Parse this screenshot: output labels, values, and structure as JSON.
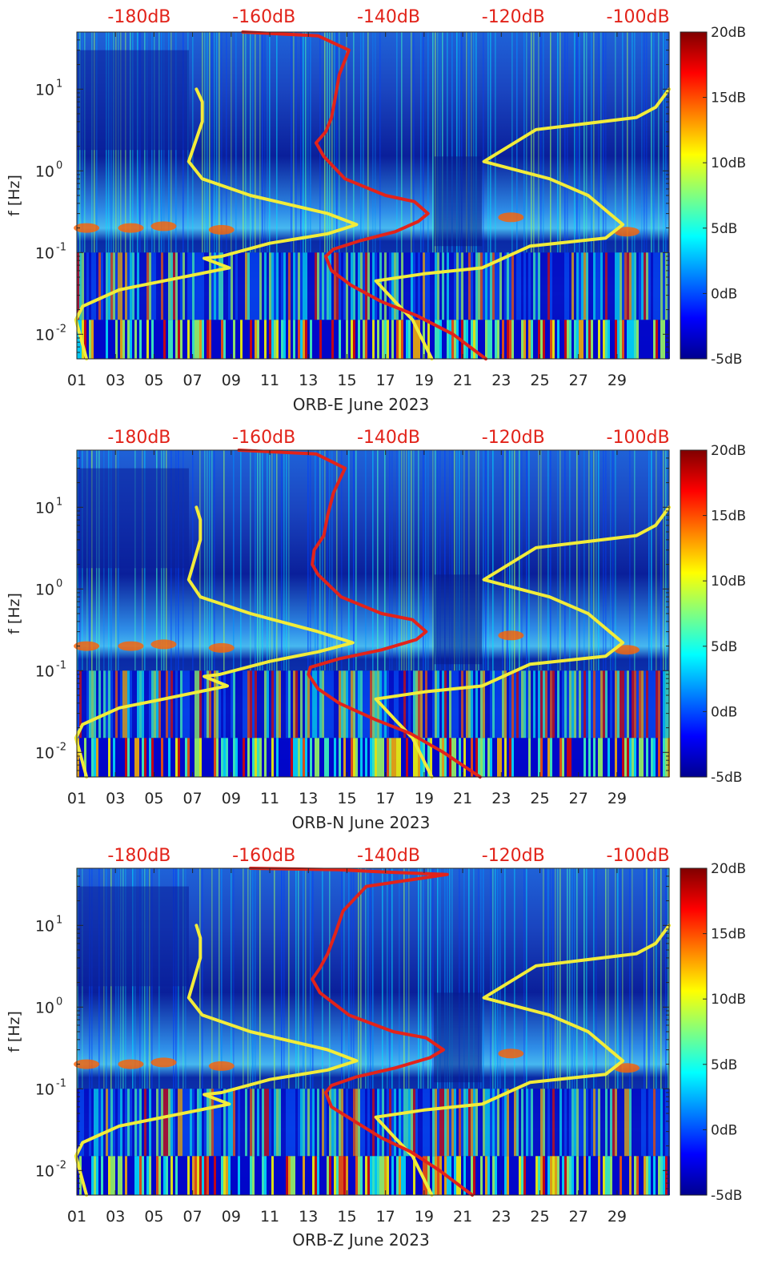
{
  "chart_data": [
    {
      "type": "heatmap",
      "station": "ORB-E",
      "xlabel": "ORB-E June 2023",
      "ylabel": "f [Hz]",
      "x_ticks": [
        "01",
        "03",
        "05",
        "07",
        "09",
        "11",
        "13",
        "15",
        "17",
        "19",
        "21",
        "23",
        "25",
        "27",
        "29"
      ],
      "xlim_days": [
        1,
        31.7
      ],
      "y_ticks": [
        {
          "label": "10",
          "exp": "-2",
          "value": 0.01
        },
        {
          "label": "10",
          "exp": "-1",
          "value": 0.1
        },
        {
          "label": "10",
          "exp": "0",
          "value": 1
        },
        {
          "label": "10",
          "exp": "1",
          "value": 10
        }
      ],
      "ylim_hz": [
        0.005,
        50
      ],
      "top_axis_ticks": [
        "-180dB",
        "-160dB",
        "-140dB",
        "-120dB",
        "-100dB"
      ],
      "top_axis_range_db": [
        -190,
        -95
      ],
      "colorbar": {
        "labels": [
          "20dB",
          "15dB",
          "10dB",
          "5dB",
          "0dB",
          "-5dB"
        ],
        "range": [
          -5,
          20
        ],
        "colormap": "jet"
      },
      "overlay_red_day": [
        [
          9.6,
          50
        ],
        [
          13.5,
          45
        ],
        [
          15.1,
          30
        ],
        [
          14.6,
          15
        ],
        [
          14.4,
          8
        ],
        [
          14.2,
          4.5
        ],
        [
          13.9,
          3
        ],
        [
          13.4,
          2.2
        ],
        [
          13.8,
          1.5
        ],
        [
          14.9,
          0.8
        ],
        [
          17.0,
          0.5
        ],
        [
          18.5,
          0.42
        ],
        [
          19.2,
          0.3
        ],
        [
          18.7,
          0.24
        ],
        [
          17.5,
          0.18
        ],
        [
          15.7,
          0.14
        ],
        [
          14.3,
          0.11
        ],
        [
          13.9,
          0.09
        ],
        [
          14.2,
          0.06
        ],
        [
          15.2,
          0.04
        ],
        [
          16.8,
          0.025
        ],
        [
          18.6,
          0.017
        ],
        [
          20.5,
          0.01
        ],
        [
          22.2,
          0.005
        ]
      ],
      "overlay_yellow_left": [
        [
          7.2,
          10
        ],
        [
          7.5,
          7
        ],
        [
          7.5,
          4
        ],
        [
          6.8,
          1.3
        ],
        [
          7.5,
          0.8
        ],
        [
          10.0,
          0.5
        ],
        [
          14.0,
          0.3
        ],
        [
          15.5,
          0.22
        ],
        [
          14.0,
          0.17
        ],
        [
          11.0,
          0.13
        ],
        [
          8.5,
          0.09
        ],
        [
          7.6,
          0.085
        ],
        [
          8.9,
          0.065
        ],
        [
          5.5,
          0.045
        ],
        [
          3.2,
          0.035
        ],
        [
          1.3,
          0.022
        ],
        [
          0.95,
          0.015
        ],
        [
          1.5,
          0.005
        ]
      ],
      "overlay_yellow_right": [
        [
          31.7,
          10
        ],
        [
          31.0,
          6
        ],
        [
          30.0,
          4.5
        ],
        [
          24.8,
          3.2
        ],
        [
          22.1,
          1.3
        ],
        [
          25.5,
          0.8
        ],
        [
          27.5,
          0.5
        ],
        [
          29.3,
          0.22
        ],
        [
          28.4,
          0.15
        ],
        [
          24.5,
          0.12
        ],
        [
          22.0,
          0.065
        ],
        [
          19.0,
          0.055
        ],
        [
          16.5,
          0.045
        ],
        [
          17.5,
          0.025
        ],
        [
          18.4,
          0.015
        ],
        [
          19.4,
          0.005
        ]
      ]
    },
    {
      "type": "heatmap",
      "station": "ORB-N",
      "xlabel": "ORB-N June 2023",
      "ylabel": "f [Hz]",
      "x_ticks": [
        "01",
        "03",
        "05",
        "07",
        "09",
        "11",
        "13",
        "15",
        "17",
        "19",
        "21",
        "23",
        "25",
        "27",
        "29"
      ],
      "xlim_days": [
        1,
        31.7
      ],
      "y_ticks": [
        {
          "label": "10",
          "exp": "-2",
          "value": 0.01
        },
        {
          "label": "10",
          "exp": "-1",
          "value": 0.1
        },
        {
          "label": "10",
          "exp": "0",
          "value": 1
        },
        {
          "label": "10",
          "exp": "1",
          "value": 10
        }
      ],
      "ylim_hz": [
        0.005,
        50
      ],
      "top_axis_ticks": [
        "-180dB",
        "-160dB",
        "-140dB",
        "-120dB",
        "-100dB"
      ],
      "top_axis_range_db": [
        -190,
        -95
      ],
      "colorbar": {
        "labels": [
          "20dB",
          "15dB",
          "10dB",
          "5dB",
          "0dB",
          "-5dB"
        ],
        "range": [
          -5,
          20
        ],
        "colormap": "jet"
      },
      "overlay_red_day": [
        [
          9.4,
          50
        ],
        [
          13.4,
          45
        ],
        [
          14.9,
          30
        ],
        [
          14.3,
          15
        ],
        [
          14.0,
          8
        ],
        [
          13.8,
          4.5
        ],
        [
          13.3,
          3
        ],
        [
          13.2,
          2.0
        ],
        [
          13.5,
          1.5
        ],
        [
          14.7,
          0.8
        ],
        [
          16.8,
          0.5
        ],
        [
          18.4,
          0.42
        ],
        [
          19.1,
          0.3
        ],
        [
          18.6,
          0.24
        ],
        [
          16.8,
          0.18
        ],
        [
          14.6,
          0.14
        ],
        [
          13.1,
          0.11
        ],
        [
          13.0,
          0.09
        ],
        [
          13.5,
          0.06
        ],
        [
          14.6,
          0.04
        ],
        [
          16.5,
          0.025
        ],
        [
          18.3,
          0.017
        ],
        [
          20.0,
          0.01
        ],
        [
          21.9,
          0.005
        ]
      ],
      "overlay_yellow_left": [
        [
          7.2,
          10
        ],
        [
          7.4,
          7
        ],
        [
          7.4,
          4
        ],
        [
          6.8,
          1.3
        ],
        [
          7.4,
          0.8
        ],
        [
          10.0,
          0.5
        ],
        [
          13.5,
          0.3
        ],
        [
          15.3,
          0.22
        ],
        [
          13.5,
          0.17
        ],
        [
          11.0,
          0.13
        ],
        [
          8.4,
          0.09
        ],
        [
          7.6,
          0.085
        ],
        [
          8.8,
          0.065
        ],
        [
          5.5,
          0.045
        ],
        [
          3.2,
          0.035
        ],
        [
          1.3,
          0.022
        ],
        [
          0.95,
          0.015
        ],
        [
          1.5,
          0.005
        ]
      ],
      "overlay_yellow_right": [
        [
          31.7,
          10
        ],
        [
          31.0,
          6
        ],
        [
          30.0,
          4.5
        ],
        [
          24.8,
          3.2
        ],
        [
          22.1,
          1.3
        ],
        [
          25.5,
          0.8
        ],
        [
          27.5,
          0.5
        ],
        [
          29.3,
          0.22
        ],
        [
          28.4,
          0.15
        ],
        [
          24.5,
          0.12
        ],
        [
          22.0,
          0.065
        ],
        [
          19.0,
          0.055
        ],
        [
          16.5,
          0.045
        ],
        [
          17.5,
          0.025
        ],
        [
          18.4,
          0.015
        ],
        [
          19.4,
          0.005
        ]
      ]
    },
    {
      "type": "heatmap",
      "station": "ORB-Z",
      "xlabel": "ORB-Z June 2023",
      "ylabel": "f [Hz]",
      "x_ticks": [
        "01",
        "03",
        "05",
        "07",
        "09",
        "11",
        "13",
        "15",
        "17",
        "19",
        "21",
        "23",
        "25",
        "27",
        "29"
      ],
      "xlim_days": [
        1,
        31.7
      ],
      "y_ticks": [
        {
          "label": "10",
          "exp": "-2",
          "value": 0.01
        },
        {
          "label": "10",
          "exp": "-1",
          "value": 0.1
        },
        {
          "label": "10",
          "exp": "0",
          "value": 1
        },
        {
          "label": "10",
          "exp": "1",
          "value": 10
        }
      ],
      "ylim_hz": [
        0.005,
        50
      ],
      "top_axis_ticks": [
        "-180dB",
        "-160dB",
        "-140dB",
        "-120dB",
        "-100dB"
      ],
      "top_axis_range_db": [
        -190,
        -95
      ],
      "colorbar": {
        "labels": [
          "20dB",
          "15dB",
          "10dB",
          "5dB",
          "0dB",
          "-5dB"
        ],
        "range": [
          -5,
          20
        ],
        "colormap": "jet"
      },
      "overlay_red_day": [
        [
          10.0,
          50
        ],
        [
          14.5,
          48
        ],
        [
          17.0,
          45
        ],
        [
          20.2,
          42
        ],
        [
          16.0,
          30
        ],
        [
          14.8,
          15
        ],
        [
          14.4,
          8
        ],
        [
          14.0,
          4.5
        ],
        [
          13.6,
          3
        ],
        [
          13.2,
          2.2
        ],
        [
          13.6,
          1.5
        ],
        [
          15.1,
          0.8
        ],
        [
          17.4,
          0.5
        ],
        [
          19.1,
          0.42
        ],
        [
          20.0,
          0.3
        ],
        [
          19.3,
          0.24
        ],
        [
          17.5,
          0.18
        ],
        [
          15.5,
          0.14
        ],
        [
          14.2,
          0.11
        ],
        [
          13.9,
          0.09
        ],
        [
          14.2,
          0.06
        ],
        [
          15.4,
          0.04
        ],
        [
          16.8,
          0.025
        ],
        [
          18.3,
          0.017
        ],
        [
          19.8,
          0.01
        ],
        [
          21.5,
          0.005
        ]
      ],
      "overlay_yellow_left": [
        [
          7.2,
          10
        ],
        [
          7.4,
          7
        ],
        [
          7.4,
          4
        ],
        [
          6.8,
          1.3
        ],
        [
          7.5,
          0.8
        ],
        [
          10.0,
          0.5
        ],
        [
          14.0,
          0.3
        ],
        [
          15.5,
          0.22
        ],
        [
          14.0,
          0.17
        ],
        [
          11.0,
          0.13
        ],
        [
          8.5,
          0.09
        ],
        [
          7.6,
          0.085
        ],
        [
          8.9,
          0.065
        ],
        [
          5.5,
          0.045
        ],
        [
          3.2,
          0.035
        ],
        [
          1.3,
          0.022
        ],
        [
          0.95,
          0.015
        ],
        [
          1.5,
          0.005
        ]
      ],
      "overlay_yellow_right": [
        [
          31.7,
          10
        ],
        [
          31.0,
          6
        ],
        [
          30.0,
          4.5
        ],
        [
          24.8,
          3.2
        ],
        [
          22.1,
          1.3
        ],
        [
          25.5,
          0.8
        ],
        [
          27.5,
          0.5
        ],
        [
          29.3,
          0.22
        ],
        [
          28.4,
          0.15
        ],
        [
          24.5,
          0.12
        ],
        [
          22.0,
          0.065
        ],
        [
          19.0,
          0.055
        ],
        [
          16.5,
          0.045
        ],
        [
          17.5,
          0.025
        ],
        [
          18.4,
          0.015
        ],
        [
          19.4,
          0.005
        ]
      ]
    }
  ],
  "colors": {
    "red_curve": "#e2231a",
    "yellow_curve": "#f2ec3a",
    "top_label": "#e2231a",
    "axis": "#262626"
  }
}
